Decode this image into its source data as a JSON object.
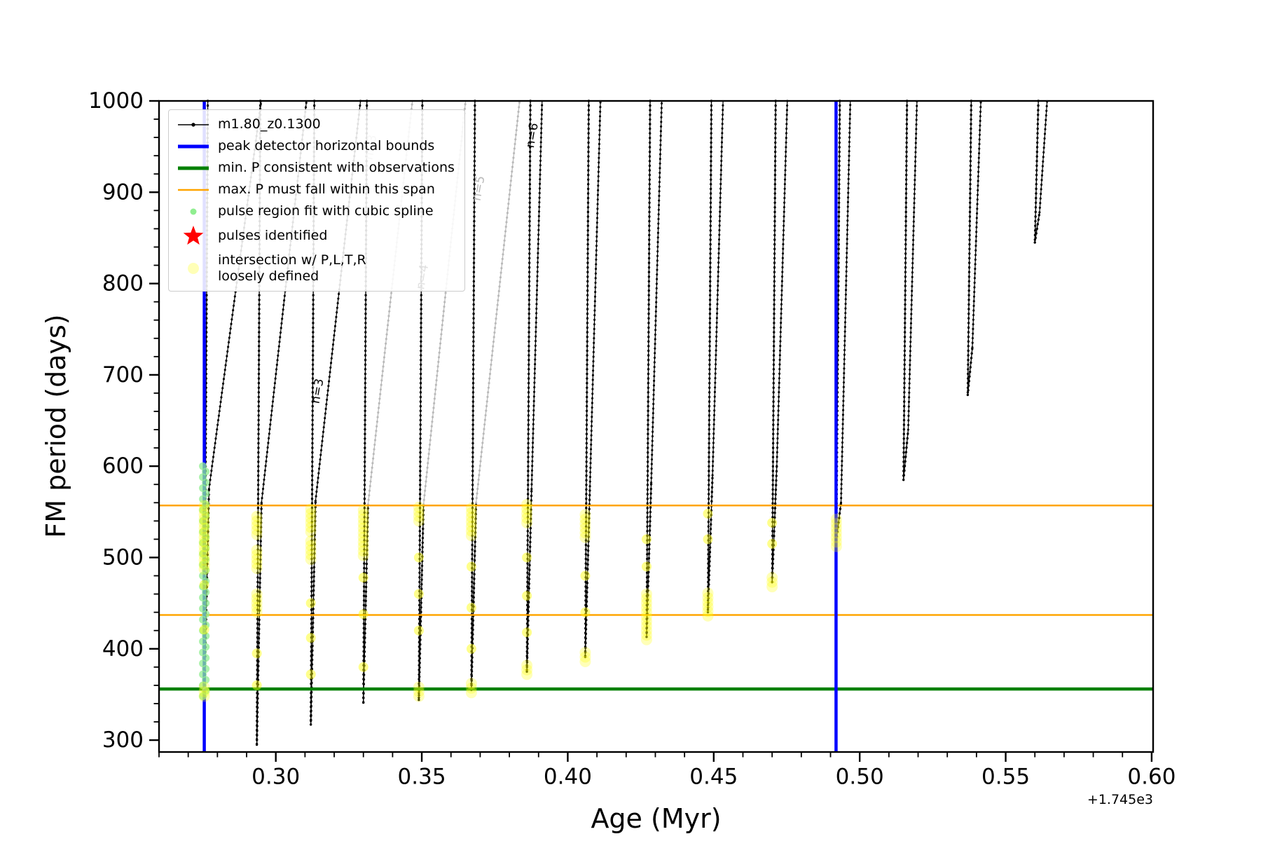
{
  "figure": {
    "background": "#ffffff"
  },
  "axes": {
    "xlabel": "Age (Myr)",
    "ylabel": "FM period (days)",
    "offset_text": "+1.745e3"
  },
  "legend": {
    "entries": [
      {
        "marker": "line-dot",
        "color": "#000000",
        "label": "m1.80_z0.1300"
      },
      {
        "marker": "thick-line",
        "color": "#0000ff",
        "label": "peak detector horizontal bounds"
      },
      {
        "marker": "thick-line",
        "color": "#008000",
        "label": "min. P consistent with observations"
      },
      {
        "marker": "line",
        "color": "#ffa500",
        "label": "max. P must fall within this span"
      },
      {
        "marker": "small-dot",
        "color": "#90ee90",
        "label": "pulse region fit with cubic spline"
      },
      {
        "marker": "star",
        "color": "#ff0000",
        "label": "pulses identified"
      },
      {
        "marker": "big-dot",
        "color": "#ffffb3",
        "label": "intersection w/ P,L,T,R\nloosely defined"
      }
    ]
  },
  "chart_data": {
    "type": "line",
    "title": "",
    "xlabel": "Age (Myr)",
    "ylabel": "FM period (days)",
    "x_offset": "+1.745e3",
    "xlim": [
      0.26,
      0.6005
    ],
    "ylim": [
      287,
      1000
    ],
    "x_major_ticks": [
      0.3,
      0.35,
      0.4,
      0.45,
      0.5,
      0.55,
      0.6
    ],
    "x_major_labels": [
      "0.30",
      "0.35",
      "0.40",
      "0.45",
      "0.50",
      "0.55",
      "0.60"
    ],
    "y_major_ticks": [
      300,
      400,
      500,
      600,
      700,
      800,
      900,
      1000
    ],
    "x_minor_step": 0.01,
    "y_minor_step": 20,
    "grid": false,
    "legend_position": "upper left",
    "series_name": "m1.80_z0.1300",
    "track_color": "#000000",
    "gray_track_color": "#b9b9b9",
    "highlight_color": "#ffff00",
    "spline_color": "#90ee90",
    "descent_top_dx": 0.0012,
    "rise_bend_dx": 0.0016,
    "vlines": [
      {
        "x": 0.2755,
        "color": "#0000ff",
        "lw": 4.5
      },
      {
        "x": 0.4919,
        "color": "#0000ff",
        "lw": 4.5
      }
    ],
    "hlines": [
      {
        "y": 356,
        "color": "#008000",
        "lw": 4.5
      },
      {
        "y": 437,
        "color": "#ffa500",
        "lw": 2.5
      },
      {
        "y": 557,
        "color": "#ffa500",
        "lw": 2.5
      }
    ],
    "pulse_tracks": [
      {
        "x": 0.2755,
        "ymin": 346,
        "bend_y": 575,
        "rise_top_x": 0.295,
        "rise_gray": false
      },
      {
        "x": 0.2935,
        "ymin": 295,
        "bend_y": 560,
        "rise_top_x": 0.3105,
        "rise_gray": false
      },
      {
        "x": 0.312,
        "ymin": 317,
        "bend_y": 562,
        "rise_top_x": 0.329,
        "rise_gray": false
      },
      {
        "x": 0.33,
        "ymin": 341,
        "bend_y": 558,
        "rise_top_x": 0.3468,
        "rise_gray": true
      },
      {
        "x": 0.349,
        "ymin": 344,
        "bend_y": 558,
        "rise_top_x": 0.365,
        "rise_gray": true
      },
      {
        "x": 0.367,
        "ymin": 355,
        "bend_y": 560,
        "rise_top_x": 0.3835,
        "rise_gray": true
      },
      {
        "x": 0.386,
        "ymin": 375,
        "bend_y": 575,
        "rise_top_x": 0.3912,
        "rise_gray": false
      },
      {
        "x": 0.406,
        "ymin": 391,
        "bend_y": 578,
        "rise_top_x": 0.4112,
        "rise_gray": false
      },
      {
        "x": 0.427,
        "ymin": 413,
        "bend_y": 582,
        "rise_top_x": 0.4322,
        "rise_gray": false
      },
      {
        "x": 0.448,
        "ymin": 440,
        "bend_y": 590,
        "rise_top_x": 0.4532,
        "rise_gray": false
      },
      {
        "x": 0.47,
        "ymin": 473,
        "bend_y": 600,
        "rise_top_x": 0.4752,
        "rise_gray": false
      },
      {
        "x": 0.492,
        "ymin": 518,
        "bend_y": 560,
        "rise_top_x": 0.4968,
        "rise_gray": false
      },
      {
        "x": 0.515,
        "ymin": 585,
        "bend_y": 640,
        "rise_top_x": 0.5196,
        "rise_gray": false
      },
      {
        "x": 0.537,
        "ymin": 678,
        "bend_y": 730,
        "rise_top_x": 0.5415,
        "rise_gray": false
      },
      {
        "x": 0.56,
        "ymin": 845,
        "bend_y": 878,
        "rise_top_x": 0.5642,
        "rise_gray": false
      }
    ],
    "annotations": [
      {
        "text": "n=3",
        "x": 0.3148,
        "y": 668,
        "color": "#000000"
      },
      {
        "text": "n=4",
        "x": 0.3507,
        "y": 793,
        "color": "#000000"
      },
      {
        "text": "n=6",
        "x": 0.3883,
        "y": 948,
        "color": "#000000"
      },
      {
        "text": "n=5",
        "x": 0.37,
        "y": 890,
        "color": "#b9b9b9"
      },
      {
        "text": "n=3",
        "x": 0.333,
        "y": 935,
        "color": "#b9b9b9"
      }
    ],
    "spline_fit_points": {
      "x": 0.2755,
      "y_from": 348,
      "y_to": 600
    },
    "intersection_points": [
      {
        "x": 0.2755,
        "segments": [
          [
            487,
            558
          ],
          [
            348,
            358
          ]
        ],
        "singles": [
          421,
          470
        ]
      },
      {
        "x": 0.2935,
        "segments": [
          [
            525,
            548
          ],
          [
            488,
            512
          ],
          [
            440,
            464
          ]
        ],
        "singles": [
          395,
          360
        ]
      },
      {
        "x": 0.312,
        "segments": [
          [
            528,
            556
          ],
          [
            498,
            520
          ]
        ],
        "singles": [
          450,
          412,
          372
        ]
      },
      {
        "x": 0.33,
        "segments": [
          [
            502,
            556
          ]
        ],
        "singles": [
          478,
          438,
          380
        ]
      },
      {
        "x": 0.349,
        "segments": [
          [
            540,
            558
          ],
          [
            348,
            360
          ]
        ],
        "singles": [
          500,
          460,
          420
        ]
      },
      {
        "x": 0.367,
        "segments": [
          [
            524,
            558
          ],
          [
            352,
            366
          ]
        ],
        "singles": [
          490,
          445,
          400
        ]
      },
      {
        "x": 0.386,
        "segments": [
          [
            538,
            558
          ],
          [
            372,
            382
          ]
        ],
        "singles": [
          500,
          458,
          418
        ]
      },
      {
        "x": 0.406,
        "segments": [
          [
            522,
            548
          ],
          [
            386,
            400
          ]
        ],
        "singles": [
          480,
          440
        ]
      },
      {
        "x": 0.427,
        "segments": [
          [
            410,
            462
          ]
        ],
        "singles": [
          520,
          490
        ]
      },
      {
        "x": 0.448,
        "segments": [
          [
            436,
            464
          ]
        ],
        "singles": [
          520,
          548
        ]
      },
      {
        "x": 0.47,
        "segments": [
          [
            468,
            482
          ]
        ],
        "singles": [
          515,
          538
        ]
      },
      {
        "x": 0.492,
        "segments": [
          [
            512,
            546
          ]
        ],
        "singles": []
      }
    ]
  }
}
